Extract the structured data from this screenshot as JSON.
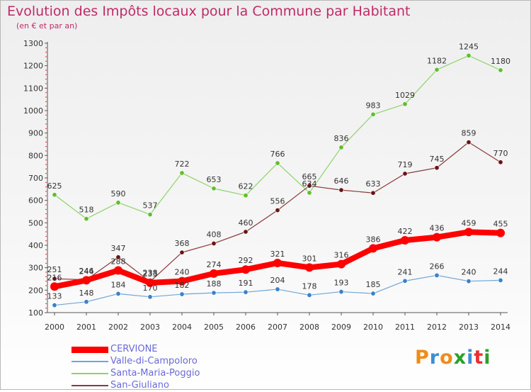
{
  "header": {
    "title": "Evolution des Impôts locaux pour la Commune par Habitant",
    "subtitle": "(en € et par an)"
  },
  "logo": {
    "text": "Proxiti",
    "colors": [
      "#f08c1a",
      "#3a8fd0",
      "#f08c1a",
      "#2aa12a",
      "#3a8fd0",
      "#e83030",
      "#2aa12a"
    ]
  },
  "chart_data": {
    "type": "line",
    "title": "Evolution des Impôts locaux pour la Commune par Habitant",
    "subtitle": "(en € et par an)",
    "x": [
      "2000",
      "2001",
      "2002",
      "2003",
      "2004",
      "2005",
      "2006",
      "2007",
      "2008",
      "2009",
      "2010",
      "2011",
      "2012",
      "2013",
      "2014"
    ],
    "ylim": [
      100,
      1300
    ],
    "yticks": [
      100,
      200,
      300,
      400,
      500,
      600,
      700,
      800,
      900,
      1000,
      1100,
      1200,
      1300
    ],
    "grid": false,
    "legend": "bottom-left",
    "series": [
      {
        "name": "Santa-Maria-Poggio",
        "color": "#8ed36b",
        "marker": "#5fbf2a",
        "width": 1.2,
        "values": [
          625,
          518,
          590,
          537,
          722,
          653,
          622,
          766,
          634,
          836,
          983,
          1029,
          1182,
          1245,
          1180
        ]
      },
      {
        "name": "San-Giuliano",
        "color": "#8b3a3a",
        "marker": "#6a1414",
        "width": 1.2,
        "values": [
          251,
          246,
          347,
          238,
          368,
          408,
          460,
          556,
          665,
          646,
          633,
          719,
          745,
          859,
          770
        ]
      },
      {
        "name": "Valle-di-Campoloro",
        "color": "#6fa6d6",
        "marker": "#3a82c8",
        "width": 1.2,
        "values": [
          133,
          148,
          184,
          170,
          182,
          188,
          191,
          204,
          178,
          193,
          185,
          241,
          266,
          240,
          244
        ]
      },
      {
        "name": "CERVIONE",
        "color": "#ff0000",
        "marker": "#ff0000",
        "width": 8,
        "values": [
          216,
          244,
          288,
          233,
          240,
          274,
          292,
          321,
          301,
          316,
          386,
          422,
          436,
          459,
          455
        ]
      }
    ],
    "legend_order": [
      "CERVIONE",
      "Valle-di-Campoloro",
      "Santa-Maria-Poggio",
      "San-Giuliano"
    ]
  }
}
